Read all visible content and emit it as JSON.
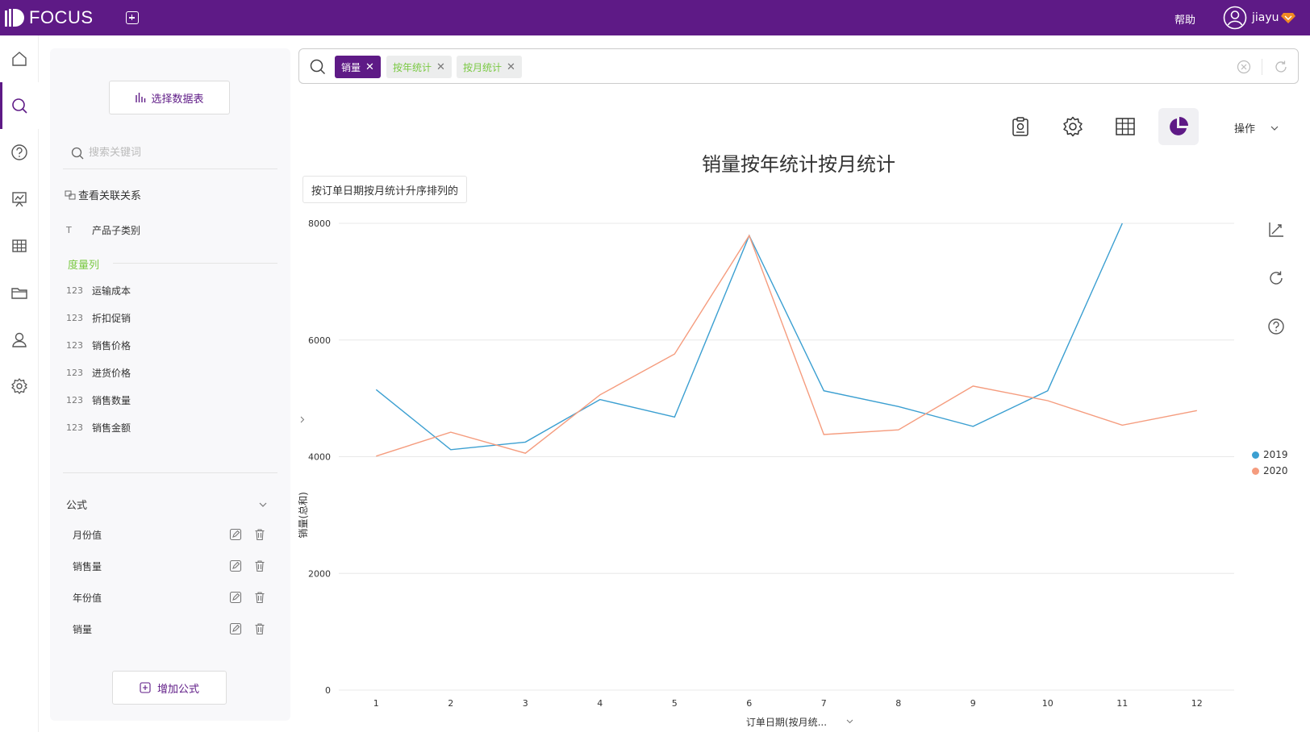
{
  "app": {
    "logo_text": "FOCUS",
    "help_label": "帮助",
    "user_name": "jiayu"
  },
  "nav": {
    "items": [
      "home-icon",
      "search-icon",
      "question-icon",
      "dashboard-icon",
      "table-icon",
      "folder-icon",
      "user-icon",
      "settings-icon"
    ],
    "active_index": 1
  },
  "data_panel": {
    "select_table_label": "选择数据表",
    "keyword_placeholder": "搜索关键词",
    "relation_link": "查看关联关系",
    "attribute_columns": [
      {
        "type": "T",
        "name": "产品子类别"
      }
    ],
    "measure_section_label": "度量列",
    "measure_columns": [
      {
        "type": "123",
        "name": "运输成本"
      },
      {
        "type": "123",
        "name": "折扣促销"
      },
      {
        "type": "123",
        "name": "销售价格"
      },
      {
        "type": "123",
        "name": "进货价格"
      },
      {
        "type": "123",
        "name": "销售数量"
      },
      {
        "type": "123",
        "name": "销售金额"
      }
    ],
    "formula_section_label": "公式",
    "formulas": [
      "月份值",
      "销售量",
      "年份值",
      "销量"
    ],
    "add_formula_label": "增加公式"
  },
  "search_bar": {
    "tokens": [
      {
        "text": "销量",
        "kind": "measure"
      },
      {
        "text": "按年统计",
        "kind": "attr"
      },
      {
        "text": "按月统计",
        "kind": "attr"
      }
    ],
    "close_glyph": "✕"
  },
  "toolbar": {
    "ops_label": "操作",
    "active": "pie-chart-icon"
  },
  "sort_note": "按订单日期按月统计升序排列的",
  "colors": {
    "brand": "#5e1a86",
    "accent_green": "#7ac943",
    "series_2019": "#3b9fd1",
    "series_2020": "#f59c7e"
  },
  "chart_data": {
    "type": "line",
    "title": "销量按年统计按月统计",
    "xlabel": "订单日期(按月统...",
    "ylabel": "销量(总和)",
    "ylim": [
      0,
      8000
    ],
    "yticks": [
      0,
      2000,
      4000,
      6000,
      8000
    ],
    "categories": [
      "1",
      "2",
      "3",
      "4",
      "5",
      "6",
      "7",
      "8",
      "9",
      "10",
      "11",
      "12"
    ],
    "series": [
      {
        "name": "2019",
        "values": [
          5150,
          4120,
          4250,
          4980,
          4680,
          7790,
          5130,
          4860,
          4520,
          5130,
          8000,
          null
        ]
      },
      {
        "name": "2020",
        "values": [
          4010,
          4420,
          4060,
          5060,
          5760,
          7790,
          4380,
          4460,
          5210,
          4960,
          4540,
          4790
        ]
      }
    ],
    "legend_position": "right",
    "grid": true
  }
}
